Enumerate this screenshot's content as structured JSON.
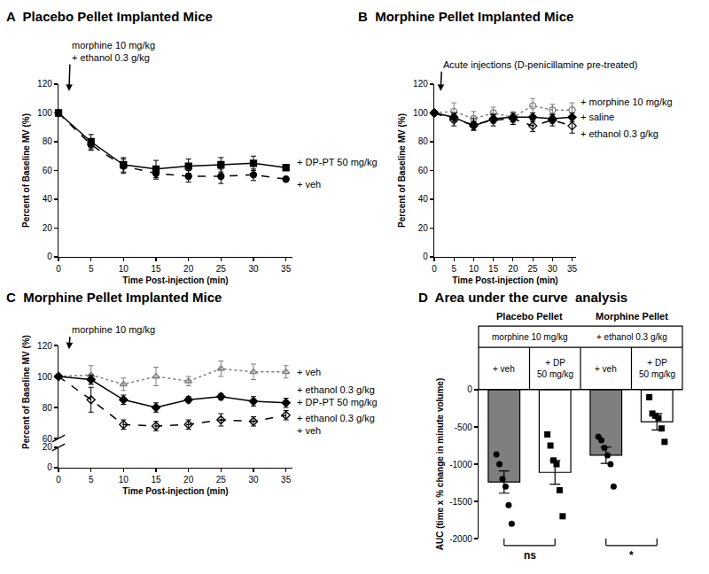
{
  "chart_data": [
    {
      "type": "line",
      "title": "A  Placebo Pellet Implanted Mice",
      "x_label": "Time Post-injection (min)",
      "y_label": "Percent of Baseline MV (%)",
      "x": [
        0,
        5,
        10,
        15,
        20,
        25,
        30,
        35
      ],
      "xlim": [
        0,
        36
      ],
      "xticks": [
        0,
        5,
        10,
        15,
        20,
        25,
        30,
        35
      ],
      "ylim": [
        0,
        120
      ],
      "yticks": [
        0,
        20,
        40,
        60,
        80,
        100,
        120
      ],
      "annotations": [
        "morphine 10 mg/kg\n+ ethanol 0.3 g/kg"
      ],
      "series": [
        {
          "name": "+ DP-PT 50 mg/kg",
          "color": "#000000",
          "marker": "square",
          "line_style": "solid",
          "values": [
            100,
            80,
            64,
            61,
            63,
            64,
            65,
            62
          ],
          "errors": [
            0,
            5,
            5,
            6,
            5,
            5,
            5,
            null
          ]
        },
        {
          "name": "+ veh",
          "color": "#000000",
          "marker": "circle",
          "line_style": "dash",
          "values": [
            100,
            78,
            63,
            58,
            56,
            56,
            57,
            54
          ],
          "errors": [
            0,
            4,
            5,
            4,
            4,
            5,
            4,
            null
          ]
        }
      ]
    },
    {
      "type": "line",
      "title": "B  Morphine Pellet Implanted Mice",
      "x_label": "Time Post-injection (min)",
      "y_label": "Percent of Baseline MV (%)",
      "x": [
        0,
        5,
        10,
        15,
        20,
        25,
        30,
        35
      ],
      "xlim": [
        0,
        36
      ],
      "xticks": [
        0,
        5,
        10,
        15,
        20,
        25,
        30,
        35
      ],
      "ylim": [
        0,
        120
      ],
      "yticks": [
        0,
        20,
        40,
        60,
        80,
        100,
        120
      ],
      "annotations": [
        "Acute injections (D-penicillamine pre-treated)"
      ],
      "series": [
        {
          "name": "+ morphine 10 mg/kg",
          "color": "#808080",
          "marker": "circle-open",
          "line_style": "dot",
          "values": [
            100,
            101,
            96,
            100,
            97,
            105,
            102,
            102
          ],
          "errors": [
            0,
            6,
            5,
            4,
            4,
            5,
            4,
            5
          ]
        },
        {
          "name": "+ saline",
          "color": "#000000",
          "marker": "diamond",
          "line_style": "solid",
          "values": [
            100,
            97,
            91,
            96,
            97,
            97,
            96,
            97
          ],
          "errors": [
            0,
            3,
            3,
            3,
            3,
            3,
            3,
            3
          ]
        },
        {
          "name": "+ ethanol 0.3 g/kg",
          "color": "#000000",
          "marker": "diamond-open",
          "line_style": "dash",
          "values": [
            100,
            95,
            92,
            95,
            96,
            91,
            95,
            91
          ],
          "errors": [
            0,
            4,
            4,
            4,
            4,
            4,
            4,
            5
          ]
        }
      ]
    },
    {
      "type": "line",
      "title": "C  Morphine Pellet Implanted Mice",
      "x_label": "Time Post-injection (min)",
      "y_label": "Percent of Baseline MV (%)",
      "x": [
        0,
        5,
        10,
        15,
        20,
        25,
        30,
        35
      ],
      "xlim": [
        0,
        36
      ],
      "xticks": [
        0,
        5,
        10,
        15,
        20,
        25,
        30,
        35
      ],
      "ylim": [
        60,
        120
      ],
      "yticks": [
        60,
        80,
        100,
        120
      ],
      "y2lim": [
        0,
        20
      ],
      "y2ticks": [
        0,
        20
      ],
      "annotations": [
        "morphine 10 mg/kg"
      ],
      "series": [
        {
          "name": "+ veh",
          "color": "#808080",
          "marker": "triangle-up-open",
          "line_style": "dot",
          "values": [
            100,
            101,
            95,
            100,
            97,
            105,
            103,
            103
          ],
          "errors": [
            0,
            6,
            4,
            6,
            3,
            5,
            5,
            4
          ]
        },
        {
          "name": "+ ethanol 0.3 g/kg\n+ DP-PT 50 mg/kg",
          "color": "#000000",
          "marker": "diamond",
          "line_style": "solid",
          "values": [
            100,
            98,
            85,
            80,
            85,
            87,
            84,
            83
          ],
          "errors": [
            0,
            3,
            3,
            3,
            2,
            2,
            3,
            3
          ]
        },
        {
          "name": "+ ethanol 0.3 g/kg\n+ veh",
          "color": "#000000",
          "marker": "diamond-open",
          "line_style": "dash",
          "values": [
            100,
            85,
            69,
            68,
            69,
            72,
            71,
            75
          ],
          "errors": [
            0,
            8,
            3,
            3,
            3,
            4,
            3,
            3
          ]
        }
      ]
    },
    {
      "type": "bar",
      "title": "D  Area under the curve  analysis",
      "y_label": "AUC (time x % change in minute volume)",
      "groups": [
        "Placebo Pellet",
        "Morphine Pellet"
      ],
      "group_notes": [
        "morphine 10 mg/kg",
        "+ ethanol 0.3 g/kg"
      ],
      "categories": [
        "+ veh",
        "+ DP\n50 mg/kg",
        "+ veh",
        "+ DP\n50 mg/kg"
      ],
      "values": [
        -1240,
        -1110,
        -880,
        -430
      ],
      "errors": [
        150,
        160,
        110,
        110
      ],
      "colors": [
        "#7f7f7f",
        "#ffffff",
        "#7f7f7f",
        "#ffffff"
      ],
      "points": [
        {
          "marker": "circle",
          "values": [
            -870,
            -1000,
            -1200,
            -1300,
            -1550,
            -1800
          ]
        },
        {
          "marker": "square",
          "values": [
            -600,
            -750,
            -950,
            -1000,
            -1350,
            -1700
          ]
        },
        {
          "marker": "circle",
          "values": [
            -630,
            -680,
            -780,
            -880,
            -1000,
            -1300
          ]
        },
        {
          "marker": "square",
          "values": [
            -100,
            -320,
            -350,
            -380,
            -520,
            -700
          ]
        }
      ],
      "ylim": [
        -2000,
        0
      ],
      "yticks": [
        -2000,
        -1500,
        -1000,
        -500,
        0
      ],
      "tick_labels": "y",
      "comparisons": [
        {
          "label": "ns",
          "between": [
            0,
            1
          ]
        },
        {
          "label": "*",
          "between": [
            2,
            3
          ]
        }
      ]
    }
  ]
}
